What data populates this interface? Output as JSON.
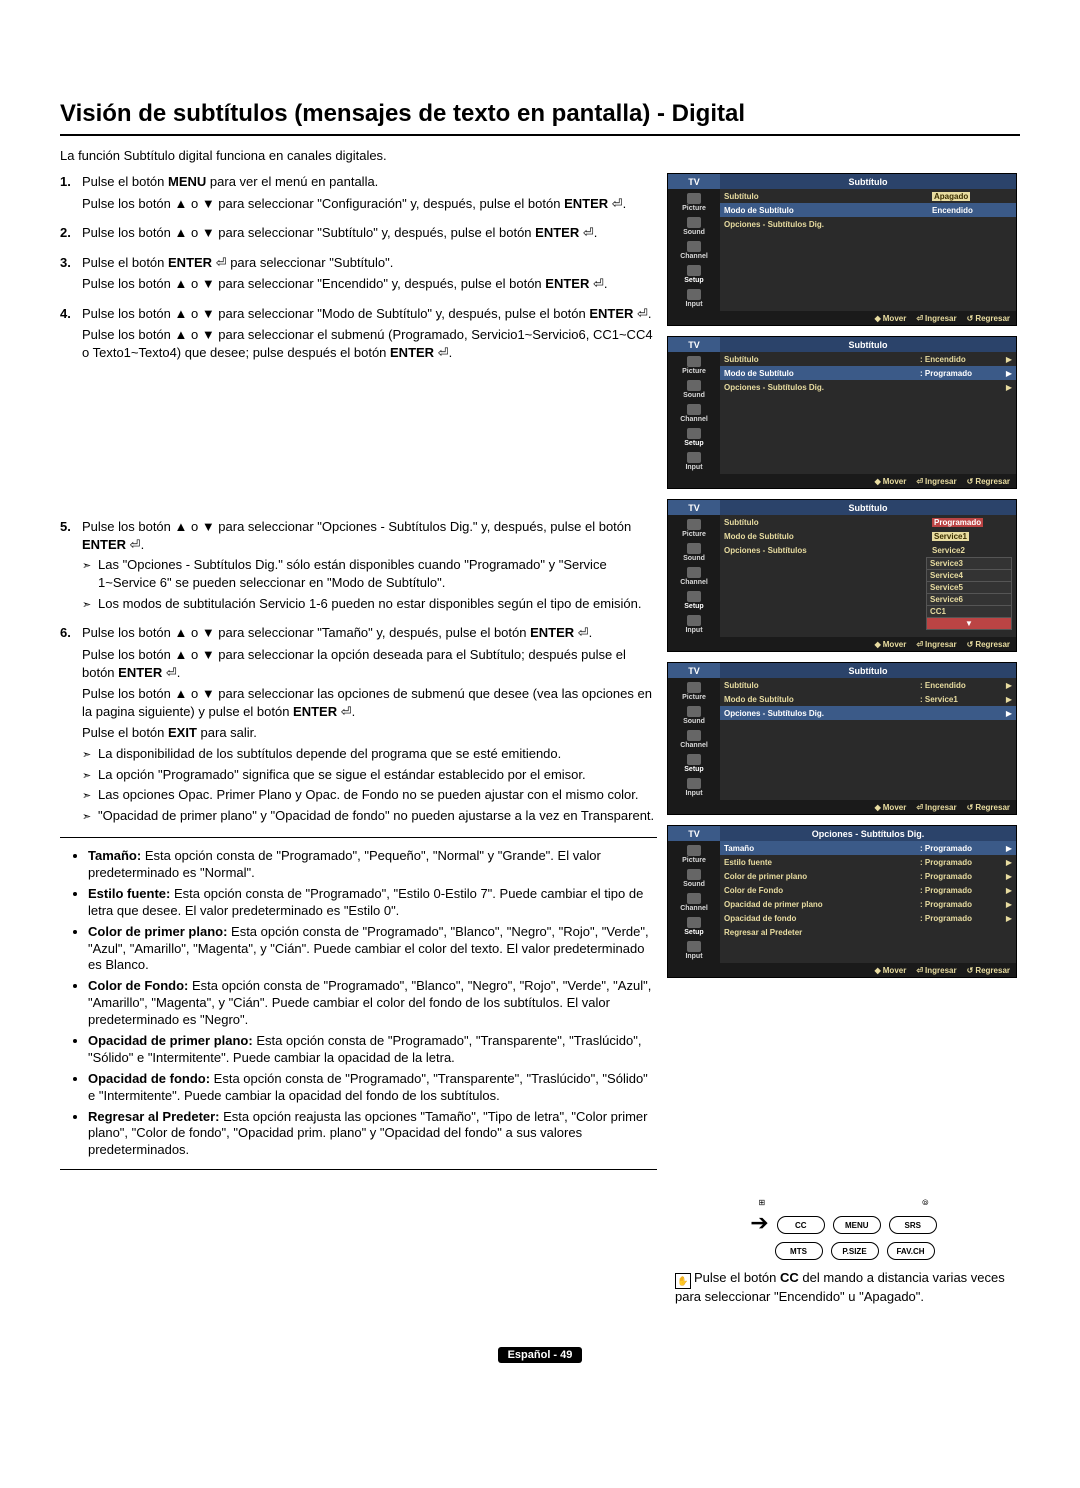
{
  "title": "Visión de subtítulos (mensajes de texto en pantalla) - Digital",
  "intro": "La función Subtítulo digital funciona en canales digitales.",
  "up": "▲",
  "down": "▼",
  "enter_icon": "⏎",
  "steps": [
    {
      "num": "1.",
      "lines": [
        "Pulse el botón <b>MENU</b> para ver el menú en pantalla.",
        "Pulse los botón ▲ o ▼ para seleccionar \"Configuración\" y, después, pulse el botón <b>ENTER</b> ⏎."
      ]
    },
    {
      "num": "2.",
      "lines": [
        "Pulse los botón ▲ o ▼ para seleccionar \"Subtítulo\" y, después, pulse el botón <b>ENTER</b> ⏎."
      ]
    },
    {
      "num": "3.",
      "lines": [
        "Pulse el botón <b>ENTER</b> ⏎ para seleccionar \"Subtítulo\".",
        "Pulse los botón ▲ o ▼ para seleccionar \"Encendido\" y, después, pulse el botón <b>ENTER</b> ⏎."
      ]
    },
    {
      "num": "4.",
      "lines": [
        "Pulse los botón ▲ o ▼ para seleccionar \"Modo de Subtítulo\" y, después, pulse el botón <b>ENTER</b> ⏎.",
        "Pulse los botón ▲ o ▼ para seleccionar el submenú (Programado, Servicio1~Servicio6, CC1~CC4 o Texto1~Texto4) que desee; pulse después el botón <b>ENTER</b> ⏎."
      ]
    }
  ],
  "step5": {
    "num": "5.",
    "lines": [
      "Pulse los botón ▲ o ▼ para seleccionar \"Opciones - Subtítulos Dig.\" y, después, pulse el botón <b>ENTER</b> ⏎."
    ],
    "notes": [
      "Las \"Opciones - Subtítulos Dig.\" sólo están disponibles cuando \"Programado\" y \"Service 1~Service 6\" se pueden seleccionar en \"Modo de Subtítulo\".",
      "Los modos de subtitulación Servicio 1-6 pueden no estar disponibles según el tipo de emisión."
    ]
  },
  "step6": {
    "num": "6.",
    "lines": [
      "Pulse los botón ▲ o ▼ para seleccionar \"Tamaño\" y, después, pulse el botón <b>ENTER</b> ⏎.",
      "Pulse los botón ▲ o ▼ para seleccionar la opción deseada para el Subtítulo; después pulse el botón <b>ENTER</b> ⏎.",
      "Pulse los botón ▲ o ▼ para seleccionar las opciones de submenú que desee (vea las opciones en la pagina siguiente) y pulse el botón <b>ENTER</b> ⏎."
    ],
    "exit": "Pulse el botón <b>EXIT</b> para salir.",
    "notes": [
      "La disponibilidad de los subtítulos depende del programa que se esté emitiendo.",
      "La opción \"Programado\" significa que se sigue el estándar establecido por el emisor.",
      "Las opciones Opac. Primer Plano y Opac. de Fondo no se pueden ajustar con el mismo color.",
      "\"Opacidad de primer plano\" y \"Opacidad de fondo\" no pueden ajustarse a la vez en Transparent."
    ]
  },
  "options": [
    {
      "label": "Tamaño:",
      "text": "Esta opción consta de \"Programado\", \"Pequeño\", \"Normal\" y \"Grande\". El valor predeterminado es \"Normal\"."
    },
    {
      "label": "Estilo fuente:",
      "text": "Esta opción consta de \"Programado\", \"Estilo 0-Estilo 7\". Puede cambiar el tipo de letra que desee. El valor predeterminado es \"Estilo 0\"."
    },
    {
      "label": "Color de primer plano:",
      "text": "Esta opción consta de \"Programado\", \"Blanco\", \"Negro\", \"Rojo\", \"Verde\", \"Azul\", \"Amarillo\", \"Magenta\", y \"Cián\". Puede cambiar el color del texto. El valor predeterminado es Blanco."
    },
    {
      "label": "Color de Fondo:",
      "text": "Esta opción consta de \"Programado\", \"Blanco\", \"Negro\", \"Rojo\", \"Verde\", \"Azul\", \"Amarillo\", \"Magenta\", y \"Cián\". Puede cambiar el color del fondo de los subtítulos. El valor predeterminado es \"Negro\"."
    },
    {
      "label": "Opacidad de primer plano:",
      "text": "Esta opción consta de \"Programado\", \"Transparente\", \"Traslúcido\", \"Sólido\" e \"Intermitente\". Puede cambiar la opacidad de la letra."
    },
    {
      "label": "Opacidad de fondo:",
      "text": "Esta opción consta de \"Programado\", \"Transparente\", \"Traslúcido\", \"Sólido\" e \"Intermitente\". Puede cambiar la opacidad del fondo de los subtítulos."
    },
    {
      "label": "Regresar al Predeter:",
      "text": "Esta opción reajusta las opciones \"Tamaño\", \"Tipo de letra\", \"Color primer plano\", \"Color de fondo\", \"Opacidad prim. plano\" y \"Opacidad del fondo\" a sus valores predeterminados."
    }
  ],
  "tv": {
    "label": "TV",
    "title": "Subtítulo",
    "title5": "Opciones - Subtítulos Dig.",
    "side": [
      "Picture",
      "Sound",
      "Channel",
      "Setup",
      "Input"
    ],
    "foot": {
      "move": "Mover",
      "enter": "Ingresar",
      "back": "Regresar"
    },
    "s1": {
      "rows": [
        {
          "l": "Subtítulo",
          "v": "Apagado",
          "hl": true
        },
        {
          "l": "Modo de Subtítulo",
          "v": "Encendido",
          "hl2": true
        },
        {
          "l": "Opciones - Subtítulos Dig.",
          "v": ""
        }
      ]
    },
    "s2": {
      "rows": [
        {
          "l": "Subtítulo",
          "v": ": Encendido",
          "arr": true
        },
        {
          "l": "Modo de Subtítulo",
          "v": ": Programado",
          "hl2": true,
          "arr": true
        },
        {
          "l": "Opciones - Subtítulos Dig.",
          "v": "",
          "arr": true
        }
      ]
    },
    "s3": {
      "rows": [
        {
          "l": "Subtítulo",
          "v": "Programado",
          "hdr": true
        },
        {
          "l": "Modo de Subtítulo",
          "v": "Service1",
          "sel": true
        },
        {
          "l": "Opciones - Subtítulos",
          "v": "Service2"
        }
      ],
      "drop": [
        "Service3",
        "Service4",
        "Service5",
        "Service6",
        "CC1"
      ]
    },
    "s4": {
      "rows": [
        {
          "l": "Subtítulo",
          "v": ": Encendido",
          "arr": true
        },
        {
          "l": "Modo de Subtítulo",
          "v": ": Service1",
          "arr": true
        },
        {
          "l": "Opciones - Subtítulos Dig.",
          "v": "",
          "hl2": true,
          "arr": true
        }
      ]
    },
    "s5": {
      "rows": [
        {
          "l": "Tamaño",
          "v": ": Programado",
          "hl2": true,
          "arr": true
        },
        {
          "l": "Estilo fuente",
          "v": ": Programado",
          "arr": true
        },
        {
          "l": "Color de primer plano",
          "v": ": Programado",
          "arr": true
        },
        {
          "l": "Color de Fondo",
          "v": ": Programado",
          "arr": true
        },
        {
          "l": "Opacidad de primer plano",
          "v": ": Programado",
          "arr": true
        },
        {
          "l": "Opacidad de fondo",
          "v": ": Programado",
          "arr": true
        },
        {
          "l": "Regresar al Predeter",
          "v": ""
        }
      ]
    }
  },
  "remote": {
    "top_symbols": [
      "⊞",
      "⦾"
    ],
    "row1": [
      "CC",
      "MENU",
      "SRS"
    ],
    "row2": [
      "MTS",
      "P.SIZE",
      "FAV.CH"
    ],
    "text": "Pulse el botón <b>CC</b> del mando a distancia varias veces para seleccionar \"Encendido\" u \"Apagado\"."
  },
  "footer": "Español - 49"
}
